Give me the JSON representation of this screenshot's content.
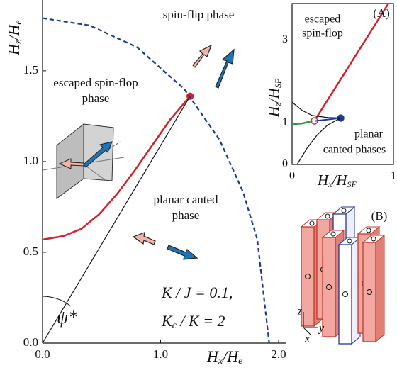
{
  "chart_data": [
    {
      "type": "line",
      "xlabel": [
        "H",
        "x",
        "/H",
        "e"
      ],
      "ylabel": [
        "H",
        "z",
        "/H",
        "e"
      ],
      "xlim": [
        0,
        2.0
      ],
      "ylim": [
        0,
        1.89
      ],
      "xticks": [
        {
          "value": 0,
          "label": "0.0"
        },
        {
          "value": 1,
          "label": "1.0"
        },
        {
          "value": 2,
          "label": "2.0"
        }
      ],
      "yticks": [
        {
          "value": 0,
          "label": "0.0"
        },
        0.5,
        {
          "value": 1,
          "label": "1.0"
        },
        1.5
      ],
      "grid": false,
      "series": [
        {
          "color": "#d42027",
          "width": 2.5,
          "dash": false,
          "marker": {
            "at": "last",
            "fill": "#d42027"
          },
          "x": [
            0,
            0.18,
            0.33,
            0.48,
            0.63,
            0.78,
            0.93,
            1.08,
            1.25
          ],
          "values": [
            0.57,
            0.59,
            0.63,
            0.71,
            0.82,
            0.95,
            1.09,
            1.23,
            1.36
          ]
        },
        {
          "color": "#111111",
          "width": 1.2,
          "dash": false,
          "x": [
            0,
            1.25
          ],
          "values": [
            0,
            1.36
          ]
        },
        {
          "color": "#1f3a93",
          "width": 2.2,
          "dash": true,
          "x": [
            0,
            0.4,
            0.8,
            1.2,
            1.5,
            1.7,
            1.82,
            1.92
          ],
          "values": [
            1.79,
            1.75,
            1.63,
            1.4,
            1.12,
            0.83,
            0.57,
            0
          ]
        }
      ],
      "annotations": [
        "spin-flip phase",
        "escaped spin-flop",
        "phase",
        "planar canted",
        "phase",
        "ψ*",
        "K / J = 0.1,",
        [
          "K",
          "c",
          " / K = 2"
        ]
      ]
    },
    {
      "type": "line",
      "xlabel": [
        "H",
        "x",
        "/H",
        "SF"
      ],
      "ylabel": [
        "H",
        "z",
        "/H",
        "SF"
      ],
      "xlim": [
        0,
        1
      ],
      "ylim": [
        0,
        3.88
      ],
      "xticks": [
        0,
        1
      ],
      "yticks": [
        0,
        1,
        3
      ],
      "grid": false,
      "series": [
        {
          "color": "#d42027",
          "width": 2.5,
          "dash": false,
          "marker": {
            "at": "first",
            "fill": "#ffffff"
          },
          "x": [
            0.22,
            0.95
          ],
          "values": [
            1.05,
            3.88
          ]
        },
        {
          "color": "#2e9e3e",
          "width": 2.5,
          "dash": false,
          "x": [
            0,
            0.1,
            0.2
          ],
          "values": [
            0.97,
            0.99,
            1.05
          ]
        },
        {
          "color": "#1f3a93",
          "width": 2,
          "dash": false,
          "marker": {
            "at": "last",
            "fill": "#1f3a93"
          },
          "x": [
            0.23,
            0.48
          ],
          "values": [
            1.05,
            1.12
          ]
        },
        {
          "color": "#111111",
          "width": 1.2,
          "dash": false,
          "x": [
            0,
            0.1,
            0.2,
            0.35,
            0.48
          ],
          "values": [
            1.5,
            1.3,
            1.18,
            1.13,
            1.12
          ]
        },
        {
          "color": "#111111",
          "width": 1.2,
          "dash": false,
          "x": [
            0.05,
            0.15,
            0.25,
            0.35,
            0.48
          ],
          "values": [
            0,
            0.4,
            0.72,
            0.95,
            1.12
          ]
        }
      ],
      "annotations": [
        "(A)",
        "escaped",
        "spin-flop",
        "planar",
        "canted phases"
      ]
    }
  ],
  "panel_b": {
    "label": "(B)",
    "axes": [
      "z",
      "x",
      "y"
    ]
  }
}
